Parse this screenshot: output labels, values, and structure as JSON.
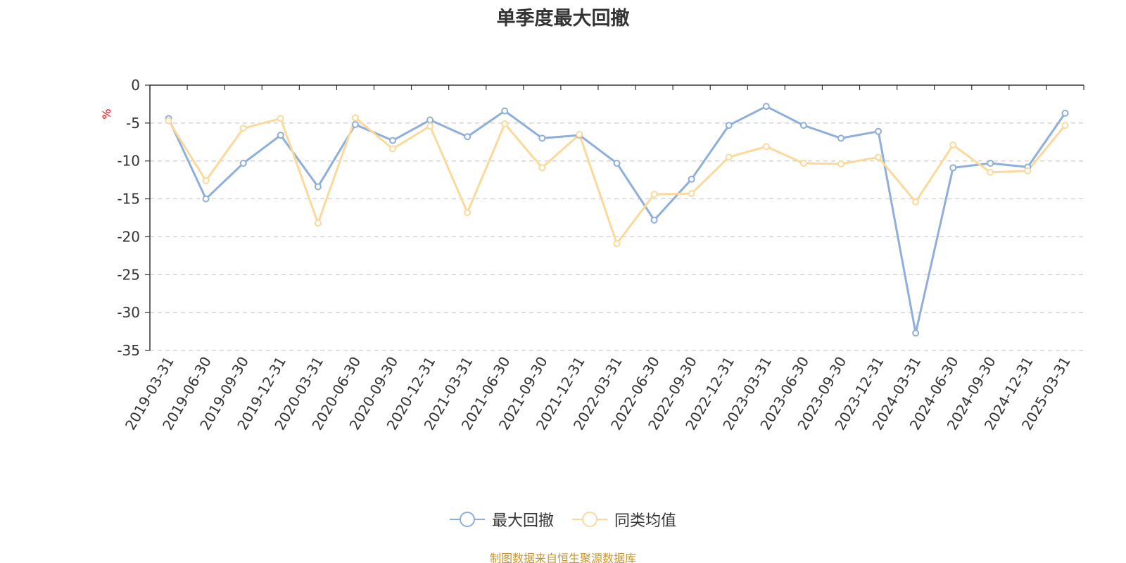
{
  "chart_data": {
    "type": "line",
    "title": "单季度最大回撤",
    "ylabel": "%",
    "xlabel": "",
    "ylim": [
      -35,
      0
    ],
    "yticks": [
      0,
      -5,
      -10,
      -15,
      -20,
      -25,
      -30,
      -35
    ],
    "grid": true,
    "legend_position": "bottom",
    "categories": [
      "2019-03-31",
      "2019-06-30",
      "2019-09-30",
      "2019-12-31",
      "2020-03-31",
      "2020-06-30",
      "2020-09-30",
      "2020-12-31",
      "2021-03-31",
      "2021-06-30",
      "2021-09-30",
      "2021-12-31",
      "2022-03-31",
      "2022-06-30",
      "2022-09-30",
      "2022-12-31",
      "2023-03-31",
      "2023-06-30",
      "2023-09-30",
      "2023-12-31",
      "2024-03-31",
      "2024-06-30",
      "2024-09-30",
      "2024-12-31",
      "2025-03-31"
    ],
    "series": [
      {
        "name": "最大回撤",
        "color": "#8eaedb",
        "values": [
          -4.4,
          -15.0,
          -10.3,
          -6.6,
          -13.4,
          -5.2,
          -7.3,
          -4.6,
          -6.8,
          -3.4,
          -7.0,
          -6.6,
          -10.3,
          -17.8,
          -12.4,
          -5.3,
          -2.8,
          -5.3,
          -7.0,
          -6.1,
          -32.7,
          -10.9,
          -10.3,
          -10.8,
          -3.7
        ]
      },
      {
        "name": "同类均值",
        "color": "#fcd99a",
        "values": [
          -4.7,
          -12.6,
          -5.7,
          -4.4,
          -18.2,
          -4.3,
          -8.4,
          -5.4,
          -16.8,
          -5.1,
          -10.9,
          -6.5,
          -20.9,
          -14.4,
          -14.3,
          -9.5,
          -8.1,
          -10.3,
          -10.4,
          -9.5,
          -15.4,
          -7.9,
          -11.5,
          -11.3,
          -5.3
        ]
      }
    ],
    "source_note": "制图数据来自恒生聚源数据库",
    "colors": {
      "axis": "#333333",
      "grid": "#cccccc",
      "ylabel": "#ff0000",
      "source_note": "#c8962d"
    }
  }
}
